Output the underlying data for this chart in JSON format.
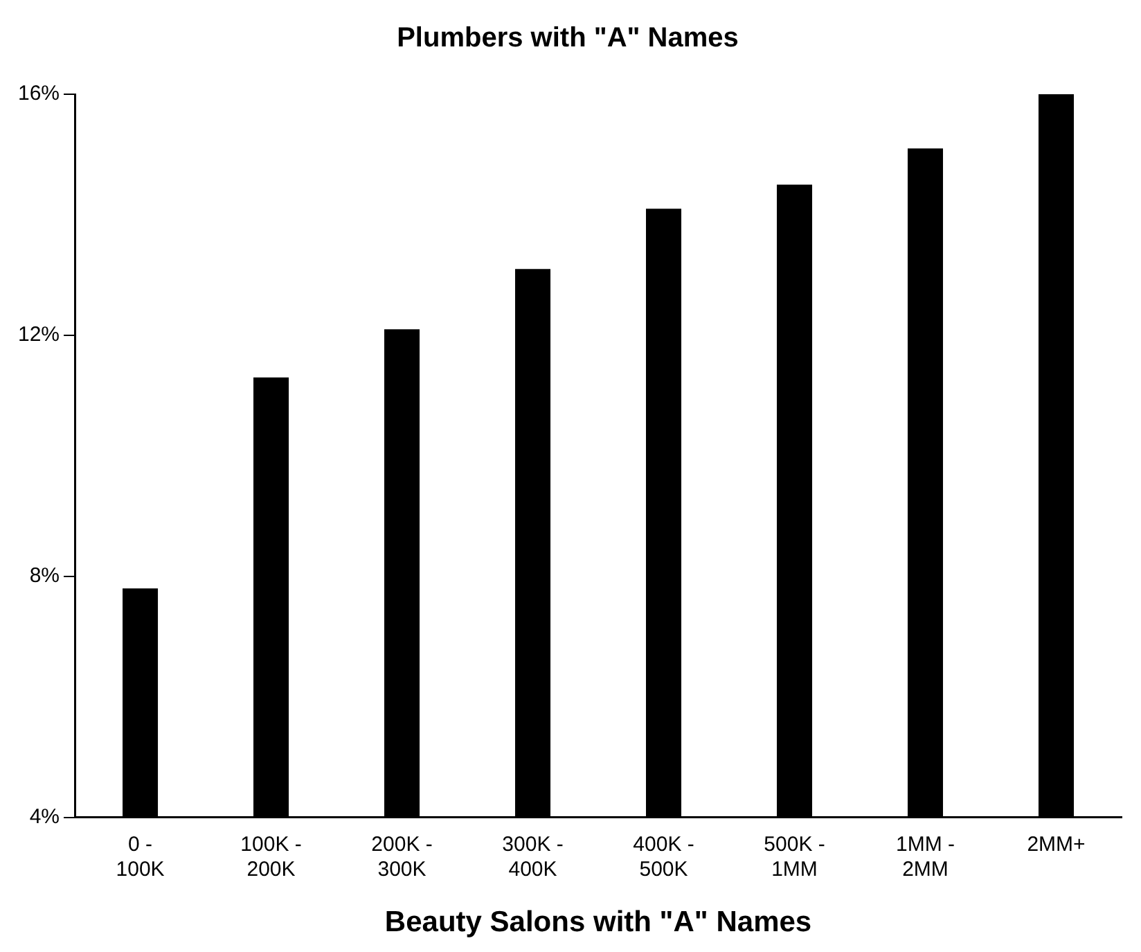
{
  "chart_data": {
    "type": "bar",
    "title": "Plumbers with \"A\" Names",
    "xlabel": "Beauty Salons with \"A\" Names",
    "categories": [
      "0 - 100K",
      "100K - 200K",
      "200K - 300K",
      "300K - 400K",
      "400K - 500K",
      "500K - 1MM",
      "1MM - 2MM",
      "2MM+"
    ],
    "values": [
      7.8,
      11.3,
      12.1,
      13.1,
      14.1,
      14.5,
      15.1,
      16.0
    ],
    "color": "#000000",
    "ylim": [
      4,
      16
    ],
    "yticks": [
      {
        "value": 4,
        "label": "4%"
      },
      {
        "value": 8,
        "label": "8%"
      },
      {
        "value": 12,
        "label": "12%"
      },
      {
        "value": 16,
        "label": "16%"
      }
    ],
    "grid": false,
    "legend": false
  }
}
